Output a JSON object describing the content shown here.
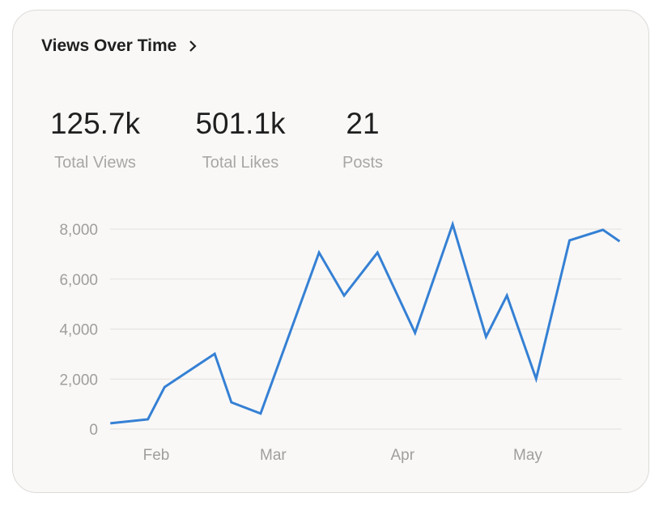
{
  "header": {
    "title": "Views Over Time",
    "chevron": "chevron-right-icon"
  },
  "stats": [
    {
      "value": "125.7k",
      "label": "Total Views"
    },
    {
      "value": "501.1k",
      "label": "Total Likes"
    },
    {
      "value": "21",
      "label": "Posts"
    }
  ],
  "chart_data": {
    "type": "line",
    "title": "",
    "xlabel": "",
    "ylabel": "",
    "ylim": [
      0,
      8000
    ],
    "yticks": [
      0,
      2000,
      4000,
      6000,
      8000
    ],
    "ytick_labels": [
      "0",
      "2,000",
      "4,000",
      "6,000",
      "8,000"
    ],
    "xtick_labels": [
      "Feb",
      "Mar",
      "Apr",
      "May"
    ],
    "grid": "horizontal",
    "color": "#3580d4",
    "x": [
      "Jan 21",
      "Jan 30",
      "Feb 3",
      "Feb 15",
      "Feb 19",
      "Feb 26",
      "Mar 12",
      "Mar 18",
      "Mar 26",
      "Apr 4",
      "Apr 13",
      "Apr 21",
      "Apr 26",
      "May 3",
      "May 11",
      "May 19",
      "May 23"
    ],
    "values": [
      230,
      390,
      1680,
      3010,
      1070,
      620,
      7060,
      5340,
      7060,
      3850,
      8190,
      3690,
      5340,
      2010,
      7550,
      7970,
      7510
    ]
  }
}
